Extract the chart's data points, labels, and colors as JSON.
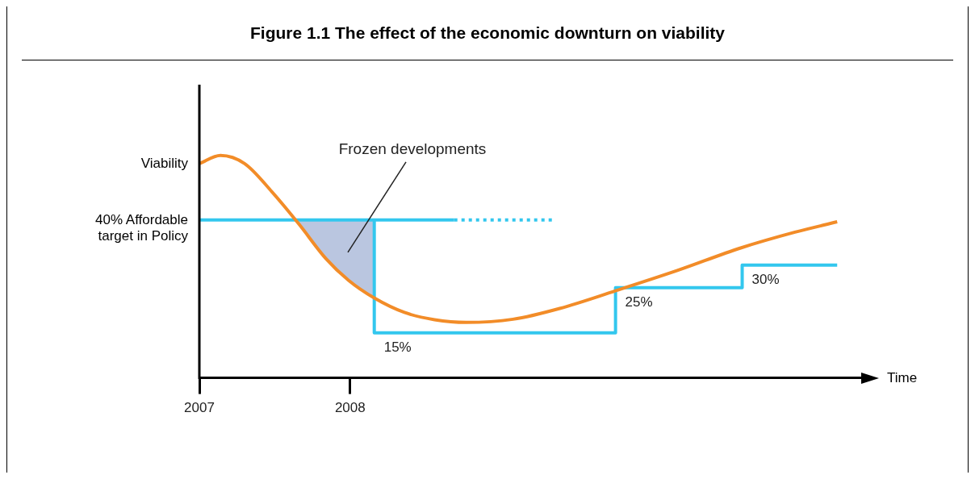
{
  "chart_data": {
    "type": "line",
    "title": "Figure 1.1 The effect of the economic downturn on viability",
    "xlabel": "Time",
    "xlim": [
      2007,
      2011.4
    ],
    "xticks": [
      2007,
      2008
    ],
    "ylim": [
      5,
      70
    ],
    "tick_labels": "x",
    "series": [
      {
        "name": "Viability",
        "color": "#f28c28",
        "x": [
          2007.0,
          2007.14,
          2007.3,
          2007.48,
          2007.66,
          2007.84,
          2007.99,
          2008.16,
          2008.36,
          2008.56,
          2008.77,
          2009.08,
          2009.39,
          2009.76,
          2010.17,
          2010.59,
          2010.95,
          2011.23
        ],
        "values": [
          52.5,
          54.3,
          52.5,
          46.3,
          39.1,
          31.4,
          26.6,
          22.7,
          19.5,
          17.9,
          17.3,
          18.0,
          20.4,
          24.3,
          28.8,
          33.8,
          37.3,
          39.6
        ]
      },
      {
        "type": "area",
        "color": "#a9b8d8",
        "x": [
          2007.66,
          2007.84,
          2007.99,
          2008.16
        ],
        "values": [
          40,
          40,
          40,
          40
        ]
      },
      {
        "name": "40% Affordable target in Policy",
        "type": "step",
        "color": "#33c7ee",
        "x": [
          2007.0,
          2008.16,
          2009.76,
          2010.6,
          2011.23
        ],
        "values": [
          40,
          15,
          25,
          30,
          30
        ],
        "value_labels": [
          null,
          "15%",
          "25%",
          "30%",
          null
        ]
      },
      {
        "type": "line",
        "color": "#33c7ee",
        "x": [
          2008.16,
          2008.69
        ],
        "values": [
          40,
          40
        ]
      },
      {
        "type": "line",
        "color": "#33c7ee",
        "line_style": "dotted",
        "x": [
          2008.69,
          2009.34
        ],
        "values": [
          40,
          40
        ]
      }
    ],
    "annotations": [
      "Frozen developments"
    ]
  }
}
